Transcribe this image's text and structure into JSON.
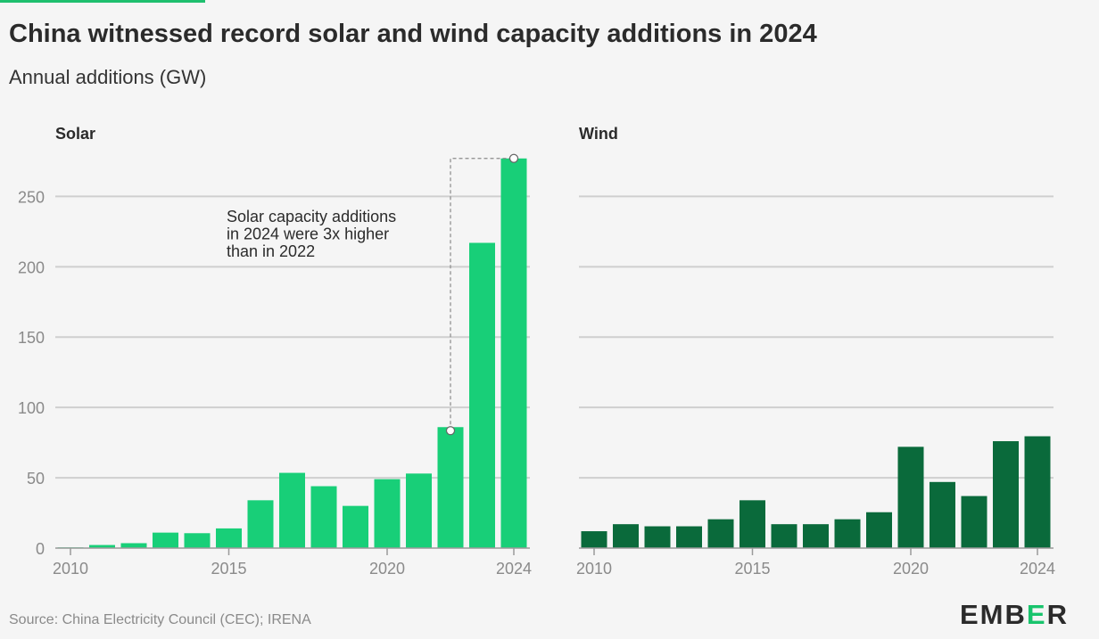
{
  "title": "China witnessed record solar and wind capacity additions in 2024",
  "subtitle": "Annual additions (GW)",
  "source": "Source: China Electricity Council (CEC); IRENA",
  "logo": {
    "pre": "EMB",
    "mark": "E",
    "post": "R"
  },
  "colors": {
    "solar": "#18cf78",
    "wind": "#0a6a3b",
    "grid": "#cfcfcf",
    "axis_text": "#8a8a8a",
    "accent": "#1fbf6e"
  },
  "chart_data": [
    {
      "type": "bar",
      "panel_label": "Solar",
      "x": [
        2010,
        2011,
        2012,
        2013,
        2014,
        2015,
        2016,
        2017,
        2018,
        2019,
        2020,
        2021,
        2022,
        2023,
        2024
      ],
      "values": [
        0.5,
        2.2,
        3.5,
        11,
        10.6,
        14,
        34,
        53.5,
        44,
        30,
        49,
        53,
        86,
        217,
        277
      ],
      "ylim": [
        0,
        277
      ],
      "y_ticks": [
        0,
        50,
        100,
        150,
        200,
        250
      ],
      "x_ticks": [
        2010,
        2015,
        2020,
        2024
      ],
      "grid": true,
      "annotation": {
        "lines": [
          "Solar capacity additions",
          "in 2024 were 3x higher",
          "than in 2022"
        ],
        "from_x": 2022,
        "to_x": 2024
      }
    },
    {
      "type": "bar",
      "panel_label": "Wind",
      "x": [
        2010,
        2011,
        2012,
        2013,
        2014,
        2015,
        2016,
        2017,
        2018,
        2019,
        2020,
        2021,
        2022,
        2023,
        2024
      ],
      "values": [
        12,
        17,
        15.5,
        15.5,
        20.5,
        34,
        17,
        17,
        20.5,
        25.5,
        72,
        47,
        37,
        76,
        79.5
      ],
      "ylim": [
        0,
        277
      ],
      "y_ticks": [
        0,
        50,
        100,
        150,
        200,
        250
      ],
      "x_ticks": [
        2010,
        2015,
        2020,
        2024
      ],
      "grid": true
    }
  ]
}
